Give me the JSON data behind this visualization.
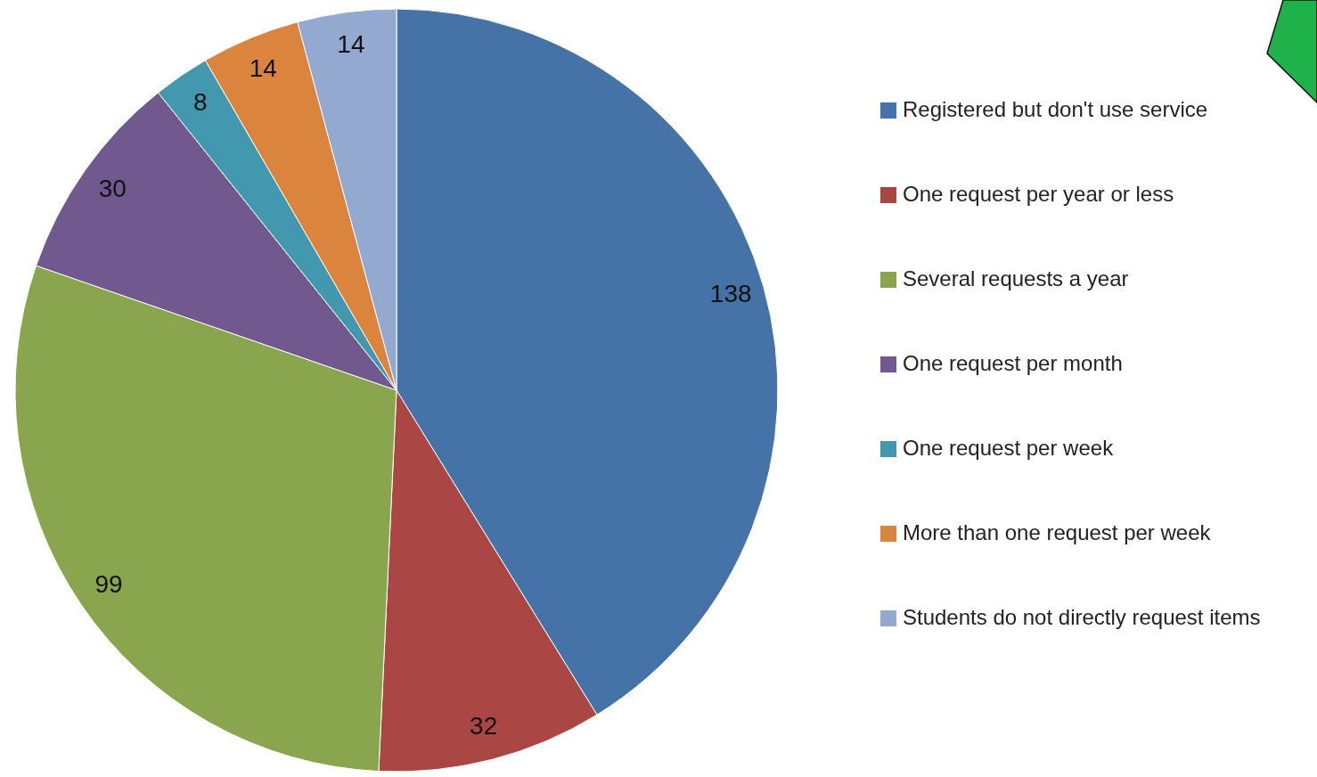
{
  "chart_data": {
    "type": "pie",
    "categories": [
      "Registered but don't use service",
      "One request per year or less",
      "Several requests a year",
      "One request per month",
      "One request per week",
      "More than one request per week",
      "Students do not directly request items"
    ],
    "values": [
      138,
      32,
      99,
      30,
      8,
      14,
      14
    ],
    "colors": [
      "#4572a7",
      "#aa4643",
      "#89a54e",
      "#71588f",
      "#4198af",
      "#db843d",
      "#93a9cf"
    ],
    "data_labels": true,
    "legend": "right"
  }
}
